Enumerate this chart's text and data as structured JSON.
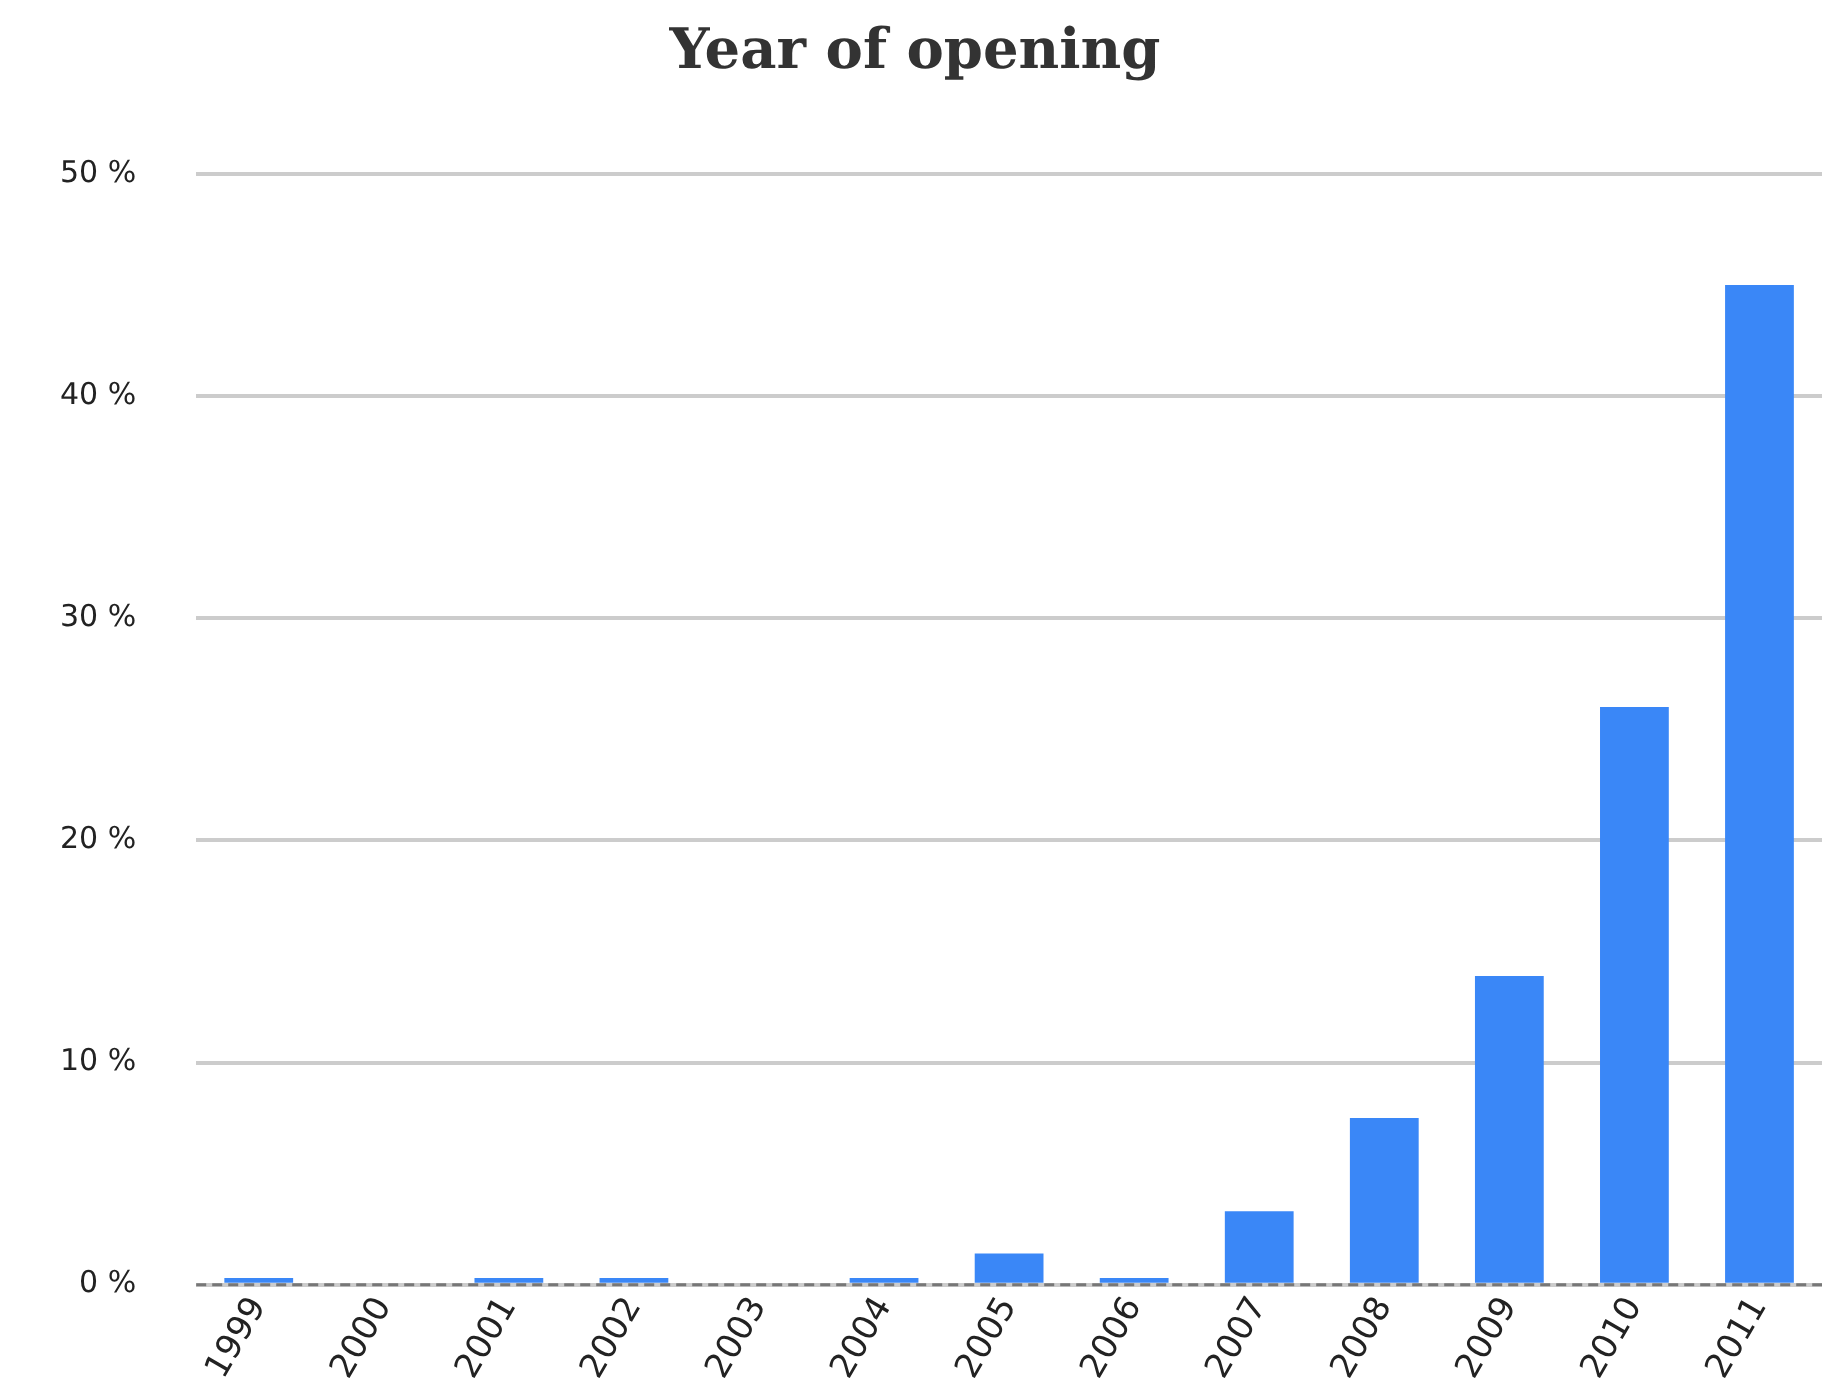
{
  "chart_data": {
    "type": "bar",
    "title": "Year of opening",
    "categories": [
      "1999",
      "2000",
      "2001",
      "2002",
      "2003",
      "2004",
      "2005",
      "2006",
      "2007",
      "2008",
      "2009",
      "2010",
      "2011"
    ],
    "values": [
      0.3,
      0,
      0.3,
      0.3,
      0,
      0.3,
      1.4,
      0.3,
      3.3,
      7.5,
      13.9,
      26,
      45
    ],
    "color": "#3a87f7",
    "ylim": [
      0,
      50
    ],
    "yticks": [
      {
        "value": 0,
        "label": "0 %"
      },
      {
        "value": 10,
        "label": "10 %"
      },
      {
        "value": 20,
        "label": "20 %"
      },
      {
        "value": 30,
        "label": "30 %"
      },
      {
        "value": 40,
        "label": "40 %"
      },
      {
        "value": 50,
        "label": "50 %"
      }
    ],
    "grid": "y",
    "legend": false
  }
}
